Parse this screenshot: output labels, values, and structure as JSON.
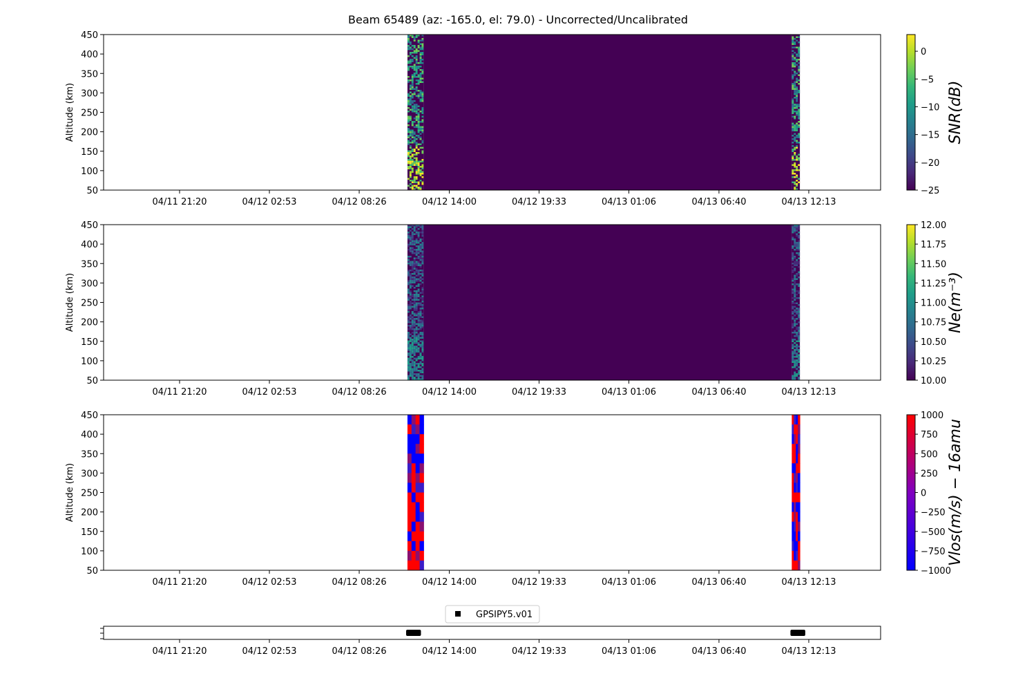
{
  "title": "Beam 65489 (az: -165.0, el: 79.0) - Uncorrected/Uncalibrated",
  "time_ticks": [
    "04/11 21:20",
    "04/12 02:53",
    "04/12 08:26",
    "04/12 14:00",
    "04/12 19:33",
    "04/13 01:06",
    "04/13 06:40",
    "04/13 12:13"
  ],
  "colors": {
    "viridis": [
      "#440154",
      "#482878",
      "#3e4989",
      "#31688e",
      "#26828e",
      "#1f9e89",
      "#35b779",
      "#6ece58",
      "#b5de2b",
      "#fde725"
    ],
    "bwr": [
      "#0000ff",
      "#ff0000"
    ]
  },
  "chart_data": [
    {
      "type": "heatmap",
      "name": "snr",
      "ylabel": "Altitude (km)",
      "yticks": [
        "50",
        "100",
        "150",
        "200",
        "250",
        "300",
        "350",
        "400",
        "450"
      ],
      "ylim": [
        50,
        450
      ],
      "colorbar": {
        "label": "SNR(dB)",
        "ticks": [
          "0",
          "−5",
          "−10",
          "−15",
          "−20",
          "−25"
        ],
        "vmin": -25,
        "vmax": 3,
        "colormap": "viridis"
      },
      "segments": [
        {
          "start": "04/12 11:25",
          "end": "04/12 12:25",
          "pattern": "noisy-bright"
        },
        {
          "start": "04/12 12:25",
          "end": "04/13 11:10",
          "value": -25
        },
        {
          "start": "04/13 11:10",
          "end": "04/13 11:40",
          "pattern": "noisy-bright"
        }
      ]
    },
    {
      "type": "heatmap",
      "name": "ne",
      "ylabel": "Altitude (km)",
      "yticks": [
        "50",
        "100",
        "150",
        "200",
        "250",
        "300",
        "350",
        "400",
        "450"
      ],
      "ylim": [
        50,
        450
      ],
      "colorbar": {
        "label": "Ne(m⁻³)",
        "ticks": [
          "10.00",
          "10.25",
          "10.50",
          "10.75",
          "11.00",
          "11.25",
          "11.50",
          "11.75",
          "12.00"
        ],
        "vmin": 10,
        "vmax": 12,
        "colormap": "viridis"
      },
      "segments": [
        {
          "start": "04/12 11:25",
          "end": "04/12 12:25",
          "pattern": "noisy-dim"
        },
        {
          "start": "04/12 12:25",
          "end": "04/13 11:10",
          "value": 10
        },
        {
          "start": "04/13 11:10",
          "end": "04/13 11:40",
          "pattern": "noisy-dim"
        }
      ]
    },
    {
      "type": "heatmap",
      "name": "vlos",
      "ylabel": "Altitude (km)",
      "yticks": [
        "50",
        "100",
        "150",
        "200",
        "250",
        "300",
        "350",
        "400",
        "450"
      ],
      "ylim": [
        50,
        450
      ],
      "colorbar": {
        "label": "Vlos(m/s) − 16amu",
        "ticks": [
          "1000",
          "750",
          "500",
          "250",
          "0",
          "−250",
          "−500",
          "−750",
          "−1000"
        ],
        "vmin": -1000,
        "vmax": 1000,
        "colormap": "bwr"
      },
      "segments": [
        {
          "start": "04/12 11:25",
          "end": "04/12 12:25",
          "pattern": "red-blue"
        },
        {
          "start": "04/13 11:10",
          "end": "04/13 11:40",
          "pattern": "red-blue"
        }
      ]
    },
    {
      "type": "scatter",
      "name": "instrument-timeline",
      "legend": "GPSIPY5.v01",
      "legend_position": "top-center",
      "marker": "square",
      "points": [
        {
          "start": "04/12 11:20",
          "end": "04/12 12:15"
        },
        {
          "start": "04/13 11:05",
          "end": "04/13 12:00"
        }
      ]
    }
  ]
}
